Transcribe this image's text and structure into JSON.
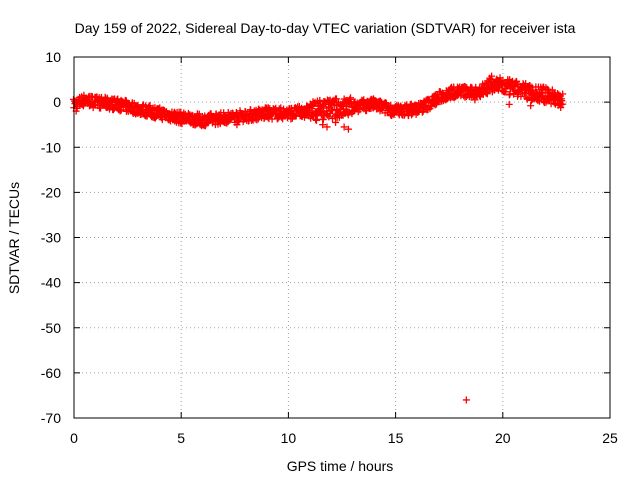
{
  "chart_data": {
    "type": "scatter",
    "title": "Day 159 of 2022, Sidereal Day-to-day VTEC variation (SDTVAR) for receiver ista",
    "xlabel": "GPS time / hours",
    "ylabel": "SDTVAR / TECUs",
    "xlim": [
      0,
      25
    ],
    "ylim": [
      -70,
      10
    ],
    "xticks": [
      0,
      5,
      10,
      15,
      20,
      25
    ],
    "yticks": [
      -70,
      -60,
      -50,
      -40,
      -30,
      -20,
      -10,
      0,
      10
    ],
    "grid": true,
    "marker": "+",
    "color": "#ff0000",
    "band_profile": [
      [
        0.0,
        -0.5
      ],
      [
        0.5,
        0.5
      ],
      [
        1.0,
        0.0
      ],
      [
        2.0,
        -0.5
      ],
      [
        3.0,
        -1.5
      ],
      [
        4.0,
        -2.5
      ],
      [
        5.0,
        -3.5
      ],
      [
        6.0,
        -4.0
      ],
      [
        7.0,
        -3.5
      ],
      [
        8.0,
        -3.0
      ],
      [
        9.0,
        -2.5
      ],
      [
        10.0,
        -2.5
      ],
      [
        11.0,
        -2.0
      ],
      [
        12.0,
        -1.5
      ],
      [
        13.0,
        -1.0
      ],
      [
        14.0,
        -0.5
      ],
      [
        15.0,
        -2.0
      ],
      [
        16.0,
        -1.5
      ],
      [
        16.5,
        -0.5
      ],
      [
        17.0,
        1.0
      ],
      [
        17.5,
        2.0
      ],
      [
        18.0,
        2.5
      ],
      [
        18.5,
        2.0
      ],
      [
        19.0,
        2.5
      ],
      [
        19.5,
        4.0
      ],
      [
        20.0,
        3.5
      ],
      [
        20.5,
        3.0
      ],
      [
        21.0,
        2.5
      ],
      [
        21.5,
        2.0
      ],
      [
        22.0,
        1.5
      ],
      [
        22.5,
        1.0
      ],
      [
        22.8,
        0.5
      ]
    ],
    "outliers": [
      [
        11.3,
        -4.0
      ],
      [
        11.6,
        -5.0
      ],
      [
        11.8,
        -5.5
      ],
      [
        12.2,
        -4.5
      ],
      [
        12.6,
        -5.5
      ],
      [
        12.8,
        -6.0
      ],
      [
        7.6,
        -5.0
      ],
      [
        6.0,
        -5.0
      ],
      [
        18.3,
        -66.0
      ],
      [
        18.7,
        0.5
      ],
      [
        19.8,
        4.8
      ],
      [
        20.3,
        -0.5
      ],
      [
        21.3,
        -0.8
      ],
      [
        22.7,
        -1.2
      ],
      [
        0.1,
        -2.0
      ]
    ]
  }
}
